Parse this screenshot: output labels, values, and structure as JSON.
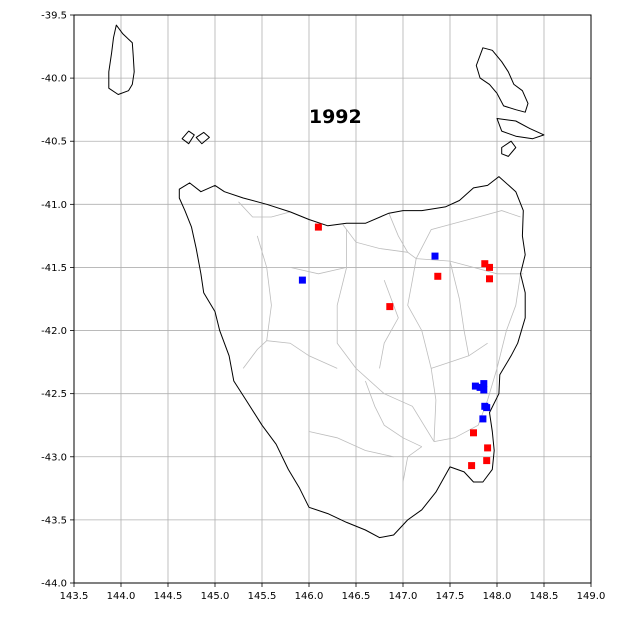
{
  "title": "1992",
  "colors": {
    "grid": "#b0b0b0",
    "coast": "#000000",
    "roads": "#bdbdbd",
    "series_red": "#ff0000",
    "series_blue": "#0000ff"
  },
  "chart_data": {
    "type": "scatter",
    "title": "1992",
    "xlabel": "",
    "ylabel": "",
    "xlim": [
      143.5,
      149.0
    ],
    "ylim": [
      -44.0,
      -39.5
    ],
    "grid": true,
    "xticks": [
      "143.5",
      "144.0",
      "144.5",
      "145.0",
      "145.5",
      "146.0",
      "146.5",
      "147.0",
      "147.5",
      "148.0",
      "148.5",
      "149.0"
    ],
    "yticks": [
      "-39.5",
      "-40.0",
      "-40.5",
      "-41.0",
      "-41.5",
      "-42.0",
      "-42.5",
      "-43.0",
      "-43.5",
      "-44.0"
    ],
    "series": [
      {
        "color": "#ff0000",
        "points": [
          {
            "x": 146.1,
            "y": -41.18
          },
          {
            "x": 147.37,
            "y": -41.57
          },
          {
            "x": 147.87,
            "y": -41.47
          },
          {
            "x": 147.92,
            "y": -41.5
          },
          {
            "x": 147.92,
            "y": -41.59
          },
          {
            "x": 146.86,
            "y": -41.81
          },
          {
            "x": 147.75,
            "y": -42.81
          },
          {
            "x": 147.9,
            "y": -42.93
          },
          {
            "x": 147.89,
            "y": -43.03
          },
          {
            "x": 147.73,
            "y": -43.07
          }
        ]
      },
      {
        "color": "#0000ff",
        "points": [
          {
            "x": 147.34,
            "y": -41.41
          },
          {
            "x": 145.93,
            "y": -41.6
          },
          {
            "x": 147.77,
            "y": -42.44
          },
          {
            "x": 147.82,
            "y": -42.45
          },
          {
            "x": 147.86,
            "y": -42.42
          },
          {
            "x": 147.86,
            "y": -42.47
          },
          {
            "x": 147.87,
            "y": -42.6
          },
          {
            "x": 147.89,
            "y": -42.61
          },
          {
            "x": 147.85,
            "y": -42.7
          }
        ]
      }
    ]
  },
  "coastlines": [
    [
      [
        143.95,
        -39.58
      ],
      [
        144.02,
        -39.65
      ],
      [
        144.12,
        -39.72
      ],
      [
        144.13,
        -39.82
      ],
      [
        144.14,
        -39.95
      ],
      [
        144.12,
        -40.05
      ],
      [
        144.08,
        -40.1
      ],
      [
        143.97,
        -40.13
      ],
      [
        143.87,
        -40.08
      ],
      [
        143.87,
        -39.95
      ],
      [
        143.9,
        -39.8
      ],
      [
        143.92,
        -39.68
      ]
    ],
    [
      [
        147.85,
        -39.76
      ],
      [
        147.95,
        -39.78
      ],
      [
        148.05,
        -39.87
      ],
      [
        148.12,
        -39.95
      ],
      [
        148.18,
        -40.05
      ],
      [
        148.27,
        -40.1
      ],
      [
        148.33,
        -40.2
      ],
      [
        148.3,
        -40.27
      ],
      [
        148.2,
        -40.25
      ],
      [
        148.07,
        -40.22
      ],
      [
        148.0,
        -40.12
      ],
      [
        147.92,
        -40.05
      ],
      [
        147.82,
        -40.0
      ],
      [
        147.78,
        -39.9
      ]
    ],
    [
      [
        148.0,
        -40.32
      ],
      [
        148.2,
        -40.34
      ],
      [
        148.35,
        -40.4
      ],
      [
        148.5,
        -40.45
      ],
      [
        148.38,
        -40.48
      ],
      [
        148.2,
        -40.46
      ],
      [
        148.05,
        -40.42
      ]
    ],
    [
      [
        148.05,
        -40.55
      ],
      [
        148.15,
        -40.5
      ],
      [
        148.2,
        -40.55
      ],
      [
        148.12,
        -40.62
      ],
      [
        148.05,
        -40.6
      ]
    ],
    [
      [
        144.65,
        -40.48
      ],
      [
        144.72,
        -40.42
      ],
      [
        144.78,
        -40.45
      ],
      [
        144.72,
        -40.52
      ]
    ],
    [
      [
        144.8,
        -40.47
      ],
      [
        144.88,
        -40.43
      ],
      [
        144.94,
        -40.47
      ],
      [
        144.86,
        -40.52
      ]
    ],
    [
      [
        144.62,
        -40.88
      ],
      [
        144.73,
        -40.83
      ],
      [
        144.85,
        -40.9
      ],
      [
        145.0,
        -40.85
      ],
      [
        145.1,
        -40.9
      ],
      [
        145.3,
        -40.95
      ],
      [
        145.55,
        -41.0
      ],
      [
        145.8,
        -41.06
      ],
      [
        146.0,
        -41.12
      ],
      [
        146.2,
        -41.17
      ],
      [
        146.4,
        -41.15
      ],
      [
        146.6,
        -41.15
      ],
      [
        146.85,
        -41.07
      ],
      [
        147.0,
        -41.05
      ],
      [
        147.2,
        -41.05
      ],
      [
        147.45,
        -41.02
      ],
      [
        147.6,
        -40.97
      ],
      [
        147.75,
        -40.87
      ],
      [
        147.9,
        -40.85
      ],
      [
        148.02,
        -40.78
      ],
      [
        148.2,
        -40.9
      ],
      [
        148.28,
        -41.05
      ],
      [
        148.27,
        -41.25
      ],
      [
        148.3,
        -41.4
      ],
      [
        148.25,
        -41.55
      ],
      [
        148.3,
        -41.7
      ],
      [
        148.3,
        -41.9
      ],
      [
        148.22,
        -42.1
      ],
      [
        148.15,
        -42.2
      ],
      [
        148.03,
        -42.35
      ],
      [
        148.02,
        -42.5
      ],
      [
        147.92,
        -42.65
      ],
      [
        147.95,
        -42.8
      ],
      [
        147.97,
        -42.95
      ],
      [
        147.95,
        -43.1
      ],
      [
        147.85,
        -43.2
      ],
      [
        147.75,
        -43.2
      ],
      [
        147.65,
        -43.12
      ],
      [
        147.5,
        -43.08
      ],
      [
        147.35,
        -43.28
      ],
      [
        147.2,
        -43.42
      ],
      [
        147.05,
        -43.5
      ],
      [
        146.9,
        -43.62
      ],
      [
        146.75,
        -43.64
      ],
      [
        146.6,
        -43.58
      ],
      [
        146.4,
        -43.52
      ],
      [
        146.2,
        -43.45
      ],
      [
        146.0,
        -43.4
      ],
      [
        145.9,
        -43.25
      ],
      [
        145.78,
        -43.1
      ],
      [
        145.65,
        -42.9
      ],
      [
        145.5,
        -42.75
      ],
      [
        145.33,
        -42.55
      ],
      [
        145.2,
        -42.4
      ],
      [
        145.15,
        -42.2
      ],
      [
        145.05,
        -42.0
      ],
      [
        145.0,
        -41.85
      ],
      [
        144.88,
        -41.7
      ],
      [
        144.85,
        -41.55
      ],
      [
        144.8,
        -41.35
      ],
      [
        144.75,
        -41.18
      ],
      [
        144.68,
        -41.05
      ],
      [
        144.62,
        -40.95
      ]
    ]
  ],
  "roads": [
    [
      [
        145.25,
        -40.98
      ],
      [
        145.4,
        -41.1
      ],
      [
        145.6,
        -41.1
      ],
      [
        145.8,
        -41.06
      ]
    ],
    [
      [
        146.36,
        -41.16
      ],
      [
        146.5,
        -41.3
      ],
      [
        146.75,
        -41.35
      ],
      [
        147.05,
        -41.38
      ],
      [
        147.14,
        -41.43
      ],
      [
        147.5,
        -41.45
      ],
      [
        147.75,
        -41.5
      ],
      [
        148.0,
        -41.55
      ],
      [
        148.28,
        -41.55
      ]
    ],
    [
      [
        147.14,
        -41.43
      ],
      [
        147.1,
        -41.6
      ],
      [
        147.05,
        -41.8
      ],
      [
        147.2,
        -42.0
      ],
      [
        147.3,
        -42.3
      ],
      [
        147.35,
        -42.55
      ],
      [
        147.33,
        -42.88
      ]
    ],
    [
      [
        146.4,
        -41.2
      ],
      [
        146.4,
        -41.5
      ],
      [
        146.3,
        -41.8
      ],
      [
        146.3,
        -42.1
      ],
      [
        146.5,
        -42.3
      ],
      [
        146.8,
        -42.5
      ],
      [
        147.1,
        -42.6
      ],
      [
        147.33,
        -42.88
      ]
    ],
    [
      [
        145.55,
        -41.5
      ],
      [
        145.8,
        -41.5
      ],
      [
        146.1,
        -41.55
      ],
      [
        146.4,
        -41.5
      ]
    ],
    [
      [
        145.55,
        -42.08
      ],
      [
        145.8,
        -42.1
      ],
      [
        146.0,
        -42.2
      ],
      [
        146.3,
        -42.3
      ]
    ],
    [
      [
        145.55,
        -42.08
      ],
      [
        145.6,
        -41.8
      ],
      [
        145.55,
        -41.5
      ],
      [
        145.45,
        -41.25
      ]
    ],
    [
      [
        147.33,
        -42.88
      ],
      [
        147.55,
        -42.85
      ],
      [
        147.8,
        -42.75
      ],
      [
        147.9,
        -42.55
      ],
      [
        148.0,
        -42.3
      ],
      [
        148.1,
        -42.0
      ],
      [
        148.2,
        -41.8
      ],
      [
        148.25,
        -41.55
      ]
    ],
    [
      [
        147.3,
        -42.3
      ],
      [
        147.5,
        -42.25
      ],
      [
        147.7,
        -42.2
      ],
      [
        147.9,
        -42.1
      ]
    ],
    [
      [
        147.14,
        -41.43
      ],
      [
        147.3,
        -41.2
      ],
      [
        147.55,
        -41.15
      ],
      [
        147.8,
        -41.1
      ],
      [
        148.05,
        -41.05
      ],
      [
        148.25,
        -41.1
      ]
    ],
    [
      [
        146.6,
        -42.4
      ],
      [
        146.7,
        -42.6
      ],
      [
        146.8,
        -42.75
      ],
      [
        147.0,
        -42.85
      ],
      [
        147.2,
        -42.92
      ]
    ],
    [
      [
        147.0,
        -43.2
      ],
      [
        147.05,
        -43.0
      ],
      [
        147.2,
        -42.92
      ]
    ],
    [
      [
        146.0,
        -42.8
      ],
      [
        146.3,
        -42.85
      ],
      [
        146.6,
        -42.95
      ],
      [
        146.9,
        -43.0
      ]
    ],
    [
      [
        147.5,
        -41.45
      ],
      [
        147.6,
        -41.75
      ],
      [
        147.65,
        -42.0
      ],
      [
        147.7,
        -42.2
      ]
    ],
    [
      [
        146.8,
        -41.6
      ],
      [
        146.95,
        -41.9
      ],
      [
        146.8,
        -42.1
      ],
      [
        146.75,
        -42.3
      ]
    ],
    [
      [
        145.3,
        -42.3
      ],
      [
        145.45,
        -42.15
      ],
      [
        145.55,
        -42.08
      ]
    ],
    [
      [
        146.85,
        -41.07
      ],
      [
        146.95,
        -41.25
      ],
      [
        147.05,
        -41.38
      ]
    ]
  ]
}
